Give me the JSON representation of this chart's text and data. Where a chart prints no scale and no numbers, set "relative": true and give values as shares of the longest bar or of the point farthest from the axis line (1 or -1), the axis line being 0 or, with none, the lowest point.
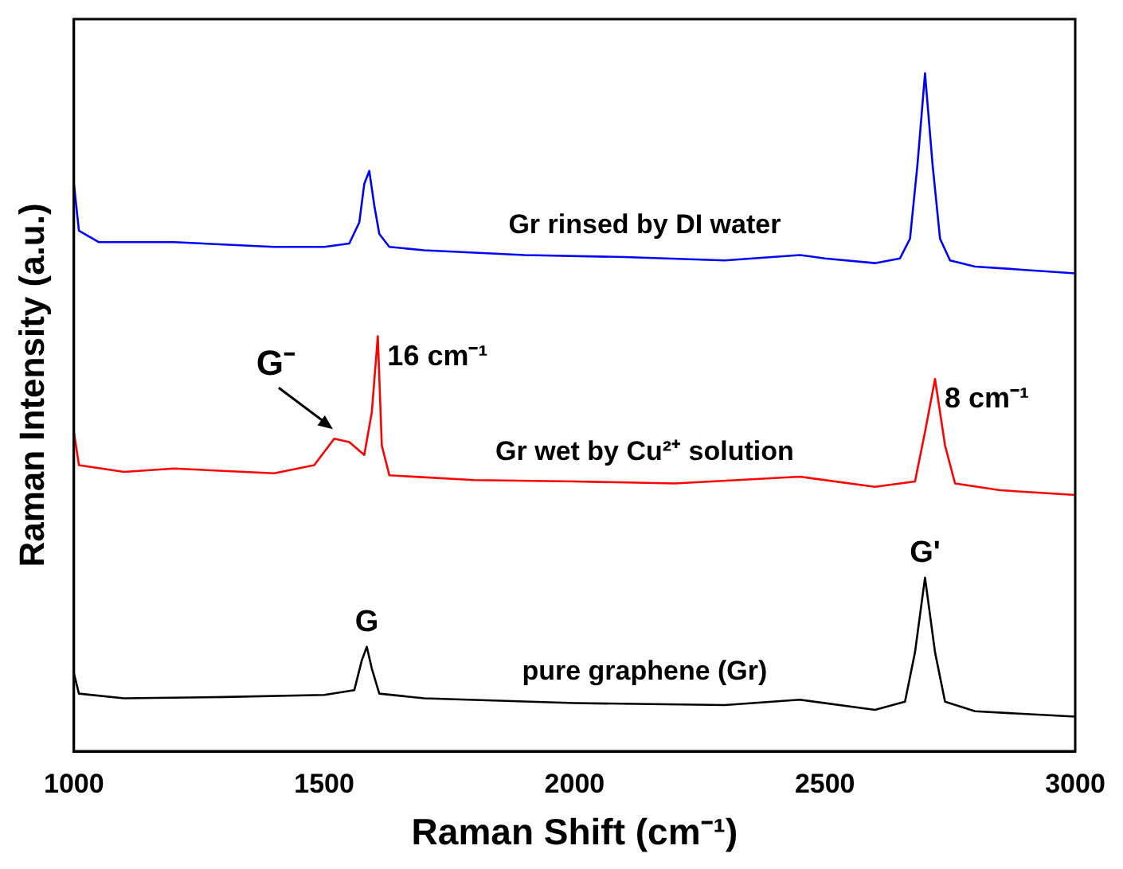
{
  "chart_data": {
    "type": "line",
    "relative": true,
    "xlabel": "Raman Shift (cm⁻¹)",
    "ylabel": "Raman Intensity (a.u.)",
    "xlim": [
      1000,
      3000
    ],
    "xticks": [
      1000,
      1500,
      2000,
      2500,
      3000
    ],
    "grid": false,
    "legend": false,
    "marker": "none",
    "line_style": "solid",
    "series": [
      {
        "name": "Gr rinsed by DI water",
        "color": "#0000ff",
        "x": [
          1000,
          1010,
          1050,
          1200,
          1400,
          1500,
          1550,
          1570,
          1580,
          1590,
          1600,
          1610,
          1630,
          1700,
          1900,
          2100,
          2300,
          2450,
          2500,
          2600,
          2650,
          2670,
          2685,
          2700,
          2715,
          2730,
          2750,
          2800,
          2900,
          3000
        ],
        "values": [
          0.837,
          0.768,
          0.751,
          0.751,
          0.744,
          0.744,
          0.749,
          0.78,
          0.837,
          0.856,
          0.805,
          0.763,
          0.744,
          0.739,
          0.732,
          0.729,
          0.724,
          0.732,
          0.727,
          0.72,
          0.727,
          0.756,
          0.866,
          1,
          0.866,
          0.756,
          0.724,
          0.715,
          0.71,
          0.705
        ]
      },
      {
        "name": "Gr wet by Cu²⁺ solution",
        "color": "#ff0000",
        "x": [
          1000,
          1010,
          1100,
          1200,
          1400,
          1480,
          1520,
          1550,
          1580,
          1595,
          1607,
          1615,
          1630,
          1800,
          2000,
          2200,
          2450,
          2600,
          2680,
          2700,
          2720,
          2740,
          2760,
          2850,
          3000
        ],
        "values": [
          0.471,
          0.422,
          0.412,
          0.417,
          0.41,
          0.422,
          0.461,
          0.456,
          0.437,
          0.5,
          0.612,
          0.451,
          0.407,
          0.4,
          0.398,
          0.395,
          0.405,
          0.39,
          0.398,
          0.471,
          0.549,
          0.451,
          0.395,
          0.385,
          0.378
        ]
      },
      {
        "name": "pure graphene (Gr)",
        "color": "#000000",
        "x": [
          1000,
          1010,
          1100,
          1300,
          1500,
          1560,
          1575,
          1585,
          1595,
          1610,
          1700,
          2000,
          2300,
          2450,
          2600,
          2660,
          2680,
          2700,
          2720,
          2740,
          2800,
          3000
        ],
        "values": [
          0.115,
          0.085,
          0.078,
          0.08,
          0.083,
          0.09,
          0.134,
          0.154,
          0.122,
          0.085,
          0.078,
          0.071,
          0.068,
          0.076,
          0.061,
          0.073,
          0.146,
          0.256,
          0.146,
          0.073,
          0.059,
          0.051
        ]
      }
    ],
    "annotations": [
      {
        "text": "G",
        "x": 1585,
        "y": 0.154
      },
      {
        "text": "G'",
        "x": 2700,
        "y": 0.256
      },
      {
        "text": "G⁻",
        "x": 1530,
        "y": 0.461
      },
      {
        "text": "16 cm⁻¹",
        "x": 1607,
        "y": 0.612
      },
      {
        "text": "8 cm⁻¹",
        "x": 2720,
        "y": 0.549
      }
    ]
  }
}
